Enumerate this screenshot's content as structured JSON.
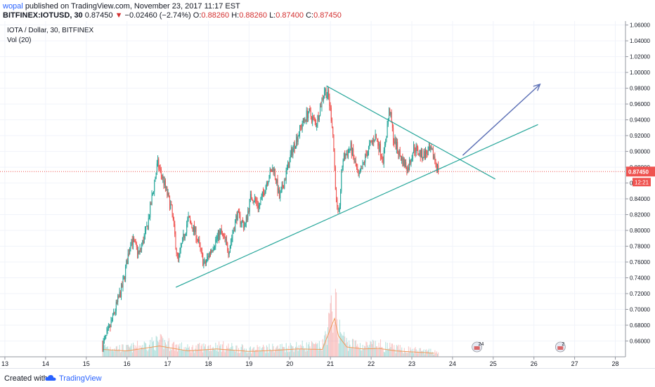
{
  "header": {
    "publisher": "wopal",
    "publish_text": "published on TradingView.com, November 23, 2017 11:17 EST",
    "symbol": "BITFINEX:IOTUSD, 30",
    "last": "0.87450",
    "change_symbol": "▼",
    "change": "−0.02460 (−2.74%)",
    "o_label": "O:",
    "o": "0.88260",
    "h_label": "H:",
    "h": "0.88260",
    "l_label": "L:",
    "l": "0.87400",
    "c_label": "C:",
    "c": "0.87450"
  },
  "footer": {
    "created": "Created with",
    "brand": "TradingView",
    "brand_icon": "tradingview-cloud-icon"
  },
  "colors": {
    "up": "#26a69a",
    "down": "#ef5350",
    "trendline": "#26a69a",
    "arrow": "#5b6fb5",
    "price_line": "#ef5350",
    "volume_ma": "#ef9a5a"
  },
  "chart_data": {
    "type": "candlestick",
    "legend_title": "IOTA / Dollar, 30, BITFINEX",
    "volume_label": "Vol (20)",
    "y_ticks": [
      "0.66000",
      "0.68000",
      "0.70000",
      "0.72000",
      "0.74000",
      "0.76000",
      "0.78000",
      "0.80000",
      "0.82000",
      "0.84000",
      "0.86000",
      "0.88000",
      "0.90000",
      "0.92000",
      "0.94000",
      "0.96000",
      "0.98000",
      "1.00000",
      "1.02000",
      "1.04000",
      "1.06000"
    ],
    "ylim": [
      0.64,
      1.065
    ],
    "x_ticks": [
      "13",
      "14",
      "15",
      "16",
      "17",
      "18",
      "19",
      "20",
      "21",
      "22",
      "23",
      "24",
      "25",
      "26",
      "27",
      "28"
    ],
    "xlim": [
      12.88,
      28.25
    ],
    "last_price": {
      "value": 0.8745,
      "label": "0.87450",
      "countdown": "12:21"
    },
    "series": [
      {
        "name": "price_keypoints",
        "x": [
          15.4,
          15.55,
          15.7,
          15.9,
          16.1,
          16.3,
          16.5,
          16.75,
          16.9,
          17.1,
          17.25,
          17.5,
          17.7,
          17.9,
          18.1,
          18.3,
          18.5,
          18.7,
          18.9,
          19.05,
          19.25,
          19.45,
          19.6,
          19.75,
          19.9,
          20.05,
          20.25,
          20.45,
          20.65,
          20.85,
          20.95,
          21.05,
          21.15,
          21.2,
          21.3,
          21.5,
          21.7,
          21.9,
          22.1,
          22.3,
          22.45,
          22.55,
          22.75,
          22.9,
          23.05,
          23.25,
          23.45,
          23.55,
          23.65
        ],
        "y": [
          0.655,
          0.672,
          0.698,
          0.732,
          0.79,
          0.77,
          0.805,
          0.885,
          0.862,
          0.825,
          0.76,
          0.815,
          0.795,
          0.755,
          0.78,
          0.798,
          0.775,
          0.82,
          0.805,
          0.845,
          0.83,
          0.865,
          0.88,
          0.84,
          0.87,
          0.9,
          0.928,
          0.95,
          0.935,
          0.978,
          0.97,
          0.932,
          0.83,
          0.815,
          0.89,
          0.905,
          0.865,
          0.9,
          0.92,
          0.89,
          0.955,
          0.915,
          0.89,
          0.878,
          0.905,
          0.895,
          0.9,
          0.893,
          0.8745
        ]
      }
    ],
    "volume_keypoints": {
      "x": [
        15.4,
        16.0,
        16.8,
        17.5,
        18.2,
        19.0,
        19.6,
        20.2,
        20.8,
        21.1,
        21.2,
        21.4,
        21.8,
        22.2,
        22.6,
        23.0,
        23.6
      ],
      "v": [
        0.15,
        0.12,
        0.22,
        0.12,
        0.16,
        0.11,
        0.13,
        0.16,
        0.15,
        0.78,
        0.42,
        0.2,
        0.16,
        0.17,
        0.12,
        0.1,
        0.07
      ]
    },
    "annotations": [
      {
        "kind": "trendline",
        "x": [
          17.2,
          26.1
        ],
        "y": [
          0.728,
          0.934
        ]
      },
      {
        "kind": "trendline",
        "x": [
          20.9,
          25.05
        ],
        "y": [
          0.983,
          0.865
        ]
      },
      {
        "kind": "arrow",
        "x": [
          24.25,
          26.15
        ],
        "y": [
          0.895,
          0.985
        ]
      }
    ],
    "events": [
      {
        "x": 24.6,
        "label": "24"
      },
      {
        "x": 26.65,
        "label": "2"
      }
    ]
  }
}
